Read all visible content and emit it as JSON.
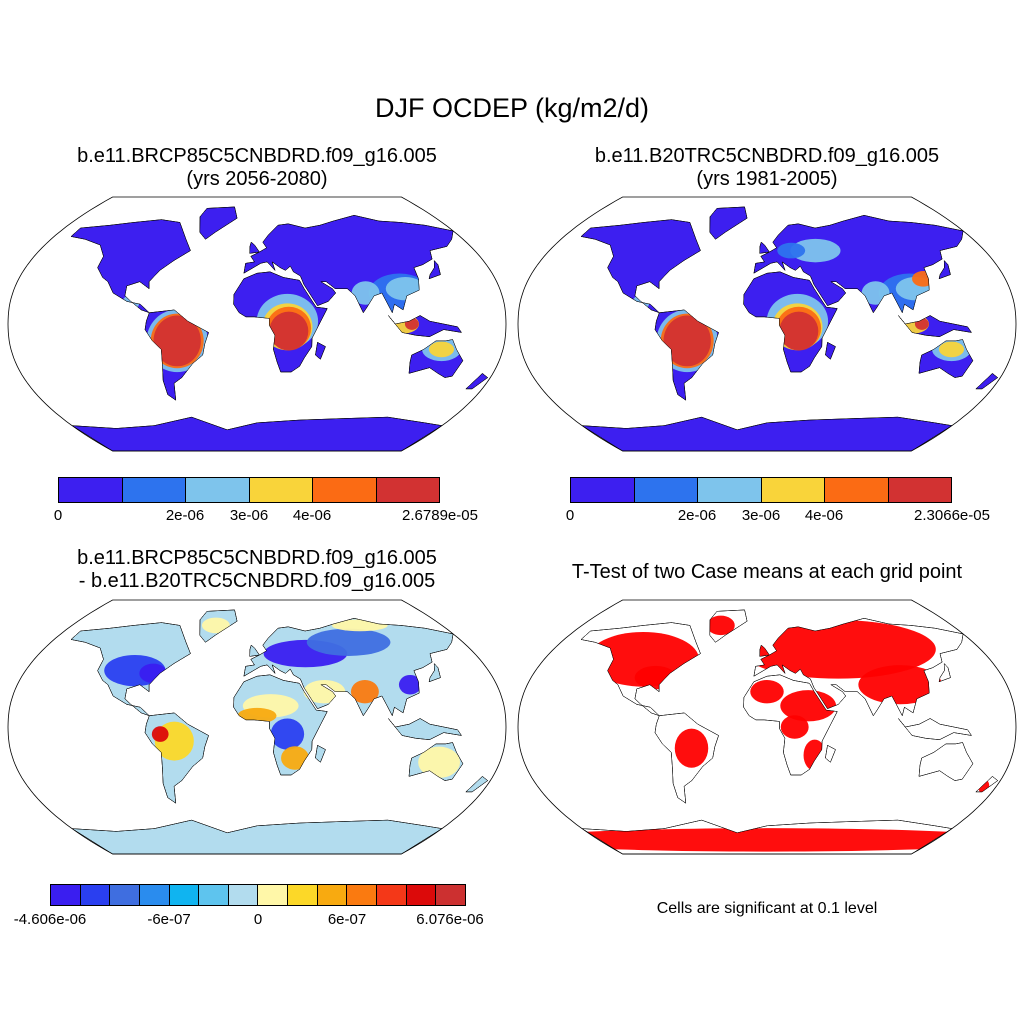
{
  "figure": {
    "title": "DJF OCDEP (kg/m2/d)"
  },
  "panels": {
    "p1": {
      "line1": "b.e11.BRCP85C5CNBDRD.f09_g16.005",
      "line2": "(yrs 2056-2080)",
      "colorbar": {
        "colors": [
          "#3d1ff0",
          "#2d73ee",
          "#7ec4ec",
          "#f9d43a",
          "#fb6b14",
          "#d23232"
        ],
        "labels": [
          "0",
          "2e-06",
          "3e-06",
          "4e-06",
          "2.6789e-05"
        ]
      }
    },
    "p2": {
      "line1": "b.e11.B20TRC5CNBDRD.f09_g16.005",
      "line2": "(yrs 1981-2005)",
      "colorbar": {
        "colors": [
          "#3d1ff0",
          "#2d73ee",
          "#7ec4ec",
          "#f9d43a",
          "#fb6b14",
          "#d23232"
        ],
        "labels": [
          "0",
          "2e-06",
          "3e-06",
          "4e-06",
          "2.3066e-05"
        ]
      }
    },
    "p3": {
      "line1": "b.e11.BRCP85C5CNBDRD.f09_g16.005",
      "line2": "- b.e11.B20TRC5CNBDRD.f09_g16.005",
      "colorbar": {
        "colors": [
          "#3a1ef0",
          "#2a3ff0",
          "#3f6ee0",
          "#2a8cee",
          "#10b4f0",
          "#5ec4ee",
          "#b2dcee",
          "#fff7a8",
          "#fcd828",
          "#f8aa10",
          "#fa7a10",
          "#f43818",
          "#dc0a0a",
          "#cc3030"
        ],
        "labels": [
          "-4.606e-06",
          "-6e-07",
          "0",
          "6e-07",
          "6.076e-06"
        ]
      }
    },
    "p4": {
      "title": "T-Test of two Case means at each grid point",
      "note": "Cells are significant at 0.1 level",
      "significant_color": "#ff0000"
    }
  }
}
